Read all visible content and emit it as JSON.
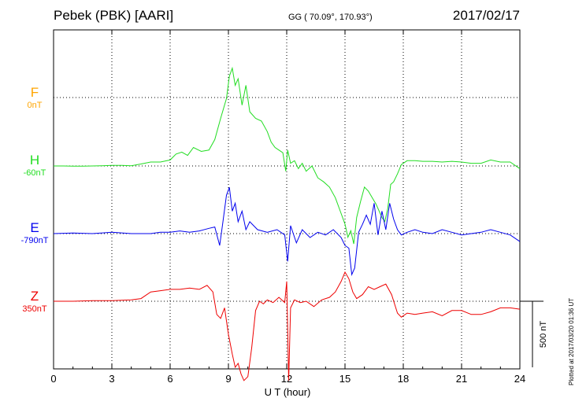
{
  "header": {
    "title": "Pebek (PBK)  [AARI]",
    "coords": "GG ( 70.09°, 170.93°)",
    "date": "2017/02/17"
  },
  "footer": {
    "plotted": "Plotted at 2017/03/20 01:36 UT"
  },
  "chart_data": {
    "type": "line",
    "xlabel": "U T (hour)",
    "xlim": [
      0,
      24
    ],
    "xticks": [
      "0",
      "3",
      "6",
      "9",
      "12",
      "15",
      "18",
      "21",
      "24"
    ],
    "scale_bar_label": "500 nT",
    "scale_bar_value_nT": 500,
    "grid": true,
    "series": [
      {
        "code": "F",
        "base_label": "0nT",
        "color": "#ffa500",
        "baseline_nT": 0,
        "x": [],
        "values": []
      },
      {
        "code": "H",
        "base_label": "-60nT",
        "color": "#22dd22",
        "baseline_nT": -60,
        "x": [
          0,
          0.5,
          1,
          1.5,
          2,
          2.5,
          3,
          3.5,
          4,
          4.5,
          5,
          5.5,
          6,
          6.3,
          6.6,
          6.9,
          7.2,
          7.6,
          8,
          8.3,
          8.6,
          8.9,
          9.05,
          9.2,
          9.35,
          9.5,
          9.7,
          9.9,
          10.1,
          10.4,
          10.7,
          11,
          11.2,
          11.4,
          11.6,
          11.8,
          11.95,
          12.05,
          12.2,
          12.4,
          12.6,
          12.8,
          13,
          13.3,
          13.6,
          13.9,
          14.2,
          14.5,
          14.8,
          15,
          15.15,
          15.3,
          15.45,
          15.6,
          15.8,
          16,
          16.2,
          16.4,
          16.6,
          16.75,
          16.9,
          17.05,
          17.2,
          17.35,
          17.5,
          17.7,
          17.9,
          18.2,
          18.6,
          19,
          19.5,
          20,
          20.5,
          21,
          21.5,
          22,
          22.5,
          23,
          23.5,
          24
        ],
        "values": [
          -60,
          -60,
          -62,
          -62,
          -60,
          -58,
          -55,
          -55,
          -58,
          -45,
          -30,
          -30,
          -15,
          30,
          45,
          20,
          80,
          50,
          60,
          140,
          300,
          450,
          620,
          680,
          550,
          600,
          400,
          550,
          350,
          300,
          280,
          200,
          120,
          80,
          60,
          40,
          -100,
          60,
          -40,
          -20,
          -80,
          -40,
          -100,
          -60,
          -150,
          -180,
          -220,
          -300,
          -420,
          -500,
          -600,
          -550,
          -650,
          -450,
          -330,
          -220,
          -250,
          -300,
          -350,
          -400,
          -450,
          -480,
          -380,
          -200,
          -180,
          -120,
          -50,
          -20,
          -20,
          -25,
          -25,
          -30,
          -25,
          -30,
          -40,
          -40,
          -15,
          -30,
          -30,
          -80
        ]
      },
      {
        "code": "E",
        "base_label": "-790nT",
        "color": "#0000ee",
        "baseline_nT": -790,
        "x": [
          0,
          1,
          2,
          3,
          4,
          5,
          5.5,
          6,
          6.5,
          7,
          7.5,
          8,
          8.3,
          8.55,
          8.7,
          8.9,
          9.05,
          9.2,
          9.35,
          9.5,
          9.7,
          9.9,
          10.1,
          10.5,
          11,
          11.5,
          11.9,
          12.05,
          12.2,
          12.5,
          12.8,
          13.2,
          13.6,
          14,
          14.4,
          14.8,
          15,
          15.2,
          15.35,
          15.5,
          15.7,
          15.9,
          16.1,
          16.3,
          16.5,
          16.7,
          16.9,
          17.1,
          17.3,
          17.5,
          17.7,
          17.9,
          18.2,
          18.6,
          19,
          19.5,
          20,
          20.5,
          21,
          21.5,
          22,
          22.5,
          23,
          23.5,
          24
        ],
        "values": [
          -790,
          -785,
          -790,
          -780,
          -790,
          -790,
          -780,
          -780,
          -770,
          -780,
          -770,
          -750,
          -740,
          -880,
          -720,
          -500,
          -440,
          -620,
          -560,
          -700,
          -620,
          -760,
          -700,
          -760,
          -780,
          -760,
          -800,
          -1000,
          -730,
          -860,
          -760,
          -820,
          -780,
          -800,
          -760,
          -820,
          -880,
          -900,
          -1100,
          -1050,
          -780,
          -720,
          -650,
          -720,
          -560,
          -800,
          -620,
          -760,
          -560,
          -680,
          -760,
          -800,
          -780,
          -760,
          -780,
          -790,
          -760,
          -780,
          -800,
          -790,
          -780,
          -760,
          -780,
          -800,
          -850
        ]
      },
      {
        "code": "Z",
        "base_label": "350nT",
        "color": "#ee0000",
        "baseline_nT": 350,
        "x": [
          0,
          1,
          2,
          3,
          4,
          4.5,
          5,
          5.5,
          6,
          6.5,
          7,
          7.5,
          7.9,
          8.2,
          8.4,
          8.6,
          8.8,
          9,
          9.2,
          9.35,
          9.5,
          9.65,
          9.8,
          10,
          10.2,
          10.4,
          10.6,
          10.8,
          11,
          11.3,
          11.6,
          11.9,
          12,
          12.1,
          12.2,
          12.4,
          12.7,
          13,
          13.4,
          13.8,
          14.2,
          14.5,
          14.8,
          15,
          15.2,
          15.4,
          15.6,
          15.9,
          16.2,
          16.5,
          16.8,
          17.1,
          17.4,
          17.7,
          17.9,
          18.2,
          18.6,
          19,
          19.5,
          20,
          20.5,
          21,
          21.5,
          22,
          22.5,
          23,
          23.5,
          24
        ],
        "values": [
          350,
          350,
          355,
          355,
          360,
          370,
          420,
          430,
          440,
          440,
          450,
          440,
          470,
          420,
          250,
          220,
          300,
          100,
          -50,
          -150,
          -120,
          -200,
          -250,
          -220,
          0,
          280,
          350,
          330,
          360,
          340,
          380,
          340,
          500,
          -250,
          300,
          360,
          340,
          350,
          310,
          360,
          380,
          420,
          500,
          570,
          520,
          420,
          370,
          400,
          460,
          440,
          460,
          480,
          400,
          260,
          230,
          260,
          250,
          260,
          270,
          240,
          280,
          280,
          250,
          250,
          270,
          300,
          300,
          290
        ]
      }
    ]
  }
}
